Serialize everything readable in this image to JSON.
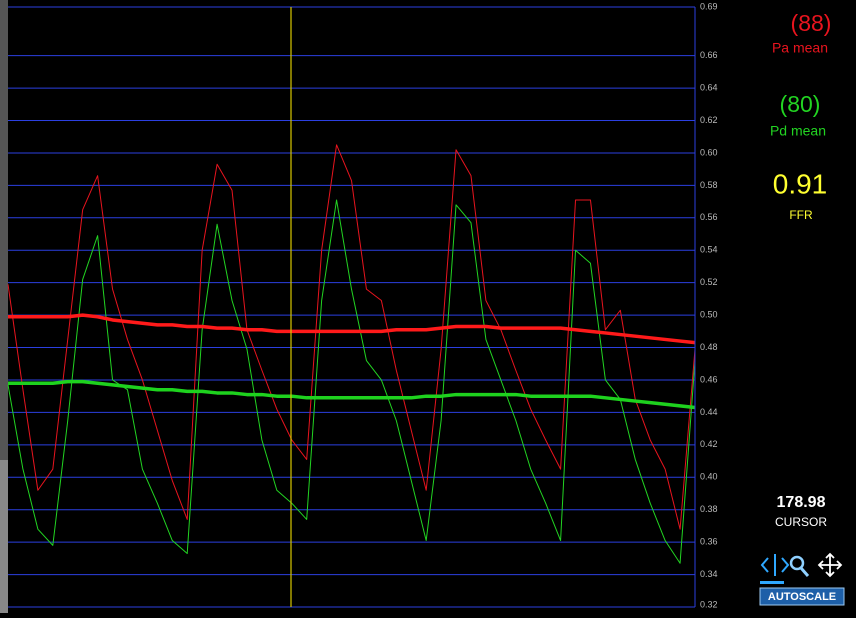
{
  "chart_data": {
    "type": "line",
    "categories": [
      null,
      null,
      null,
      null,
      null,
      null,
      null,
      null,
      null,
      null,
      null,
      null,
      null,
      null,
      null,
      null,
      null,
      null,
      null,
      null,
      null,
      null,
      null,
      null,
      null,
      null,
      null,
      null,
      null,
      null,
      null,
      null,
      null,
      null,
      null,
      null,
      null,
      null,
      null,
      null,
      null,
      null,
      null,
      null,
      null,
      null,
      null
    ],
    "series": [
      {
        "color": "#e8141e",
        "width": 1,
        "values": [
          0.519,
          0.454,
          0.392,
          0.405,
          0.485,
          0.565,
          0.586,
          0.516,
          0.485,
          0.46,
          0.429,
          0.398,
          0.374,
          0.54,
          0.593,
          0.577,
          0.491,
          0.466,
          0.442,
          0.423,
          0.411,
          0.54,
          0.605,
          0.583,
          0.516,
          0.509,
          0.466,
          0.429,
          0.392,
          0.479,
          0.602,
          0.586,
          0.509,
          0.491,
          0.466,
          0.442,
          0.423,
          0.405,
          0.571,
          0.571,
          0.491,
          0.503,
          0.448,
          0.423,
          0.405,
          0.368,
          0.479
        ]
      },
      {
        "color": "#22d422",
        "width": 1,
        "values": [
          0.457,
          0.405,
          0.368,
          0.358,
          0.435,
          0.522,
          0.549,
          0.46,
          0.454,
          0.405,
          0.384,
          0.361,
          0.353,
          0.491,
          0.556,
          0.509,
          0.479,
          0.423,
          0.392,
          0.384,
          0.374,
          0.509,
          0.571,
          0.516,
          0.472,
          0.46,
          0.435,
          0.398,
          0.361,
          0.435,
          0.568,
          0.557,
          0.485,
          0.46,
          0.435,
          0.405,
          0.384,
          0.361,
          0.54,
          0.532,
          0.46,
          0.448,
          0.411,
          0.384,
          0.361,
          0.347,
          0.472
        ]
      },
      {
        "color": "#ff1a1a",
        "width": 3.5,
        "values": [
          0.499,
          0.499,
          0.499,
          0.499,
          0.499,
          0.5,
          0.499,
          0.497,
          0.496,
          0.495,
          0.494,
          0.494,
          0.493,
          0.493,
          0.492,
          0.492,
          0.491,
          0.491,
          0.49,
          0.49,
          0.49,
          0.49,
          0.49,
          0.49,
          0.49,
          0.49,
          0.491,
          0.491,
          0.491,
          0.492,
          0.493,
          0.493,
          0.493,
          0.492,
          0.492,
          0.492,
          0.492,
          0.492,
          0.491,
          0.49,
          0.489,
          0.488,
          0.487,
          0.486,
          0.485,
          0.484,
          0.483
        ]
      },
      {
        "color": "#1ed21e",
        "width": 3.5,
        "values": [
          0.458,
          0.458,
          0.458,
          0.458,
          0.459,
          0.459,
          0.458,
          0.457,
          0.456,
          0.455,
          0.454,
          0.454,
          0.453,
          0.453,
          0.452,
          0.452,
          0.451,
          0.451,
          0.45,
          0.45,
          0.449,
          0.449,
          0.449,
          0.449,
          0.449,
          0.449,
          0.449,
          0.449,
          0.45,
          0.45,
          0.451,
          0.451,
          0.451,
          0.451,
          0.451,
          0.45,
          0.45,
          0.45,
          0.45,
          0.45,
          0.449,
          0.448,
          0.447,
          0.446,
          0.445,
          0.444,
          0.443
        ]
      }
    ],
    "ylim": [
      0.32,
      0.69
    ],
    "yticks": [
      {
        "value": 0.32,
        "label": "0.32"
      },
      {
        "value": 0.34,
        "label": "0.34"
      },
      {
        "value": 0.36,
        "label": "0.36"
      },
      {
        "value": 0.38,
        "label": "0.38"
      },
      {
        "value": 0.4,
        "label": "0.40"
      },
      {
        "value": 0.42,
        "label": "0.42"
      },
      {
        "value": 0.44,
        "label": "0.44"
      },
      {
        "value": 0.46,
        "label": "0.46"
      },
      {
        "value": 0.48,
        "label": "0.48"
      },
      {
        "value": 0.5,
        "label": "0.50"
      },
      {
        "value": 0.52,
        "label": "0.52"
      },
      {
        "value": 0.54,
        "label": "0.54"
      },
      {
        "value": 0.56,
        "label": "0.56"
      },
      {
        "value": 0.58,
        "label": "0.58"
      },
      {
        "value": 0.6,
        "label": "0.60"
      },
      {
        "value": 0.62,
        "label": "0.62"
      },
      {
        "value": 0.64,
        "label": "0.64"
      },
      {
        "value": 0.66,
        "label": "0.66"
      },
      {
        "value": 0.69,
        "label": "0.69"
      }
    ],
    "grid": true,
    "grid_color": "#2b3fe0"
  },
  "readouts": {
    "pa_mean": {
      "value": "(88)",
      "label": "Pa mean"
    },
    "pd_mean": {
      "value": "(80)",
      "label": "Pd mean"
    },
    "ffr": {
      "value": 0.91,
      "label": "FFR"
    },
    "cursor": {
      "value": 178.98,
      "label": "CURSOR"
    },
    "autoscale": "AUTOSCALE"
  }
}
